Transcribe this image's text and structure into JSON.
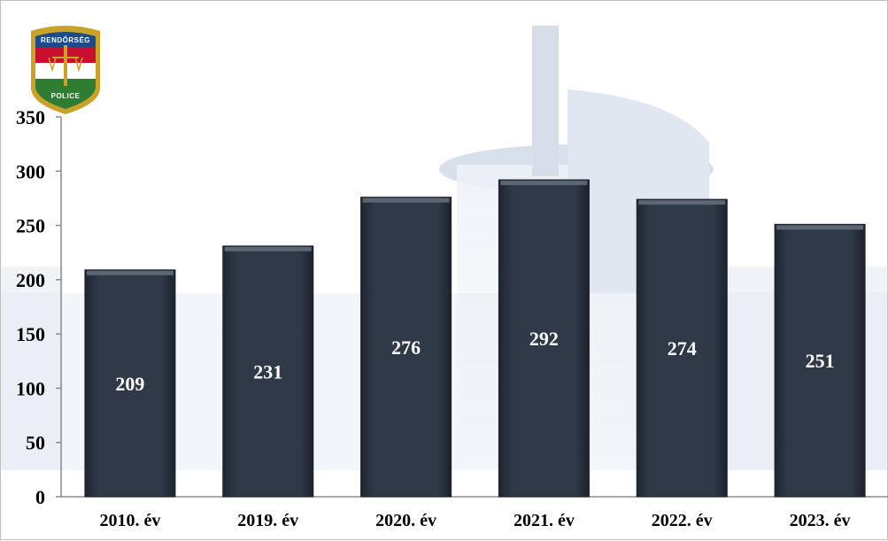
{
  "logo": {
    "name": "police-badge",
    "top_text": "RENDŐRSÉG",
    "bottom_text": "POLICE",
    "colors": [
      "#c8102e",
      "#ffffff",
      "#2e7d32",
      "#1a4b8c",
      "#c9a227"
    ]
  },
  "colors": {
    "bar_fill": "#2c3544",
    "bar_top": "#5b6675",
    "background_building": "#c9d6e6"
  },
  "chart_data": {
    "type": "bar",
    "categories": [
      "2010. év",
      "2019. év",
      "2020. év",
      "2021. év",
      "2022. év",
      "2023. év"
    ],
    "values": [
      209,
      231,
      276,
      292,
      274,
      251
    ],
    "data_labels": [
      "209",
      "231",
      "276",
      "292",
      "274",
      "251"
    ],
    "yticks": [
      "0",
      "50",
      "100",
      "150",
      "200",
      "250",
      "300",
      "350"
    ],
    "ylim": [
      0,
      350
    ],
    "grid": false,
    "legend": "none"
  }
}
